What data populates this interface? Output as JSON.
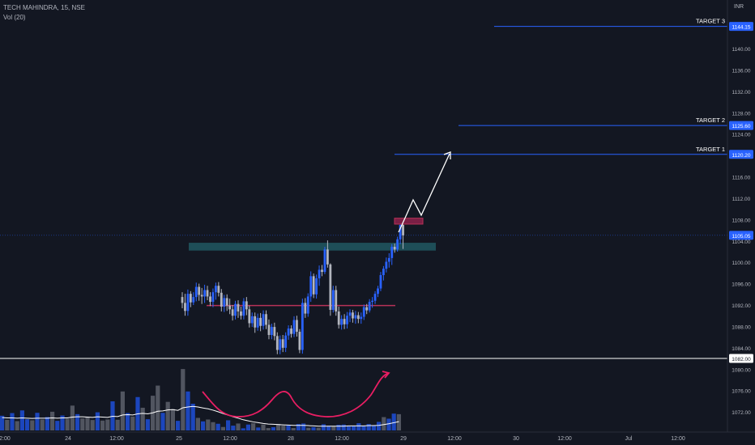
{
  "header": {
    "symbol_line": "TECH MAHINDRA, 15, NSE",
    "volume_label": "Vol (20)",
    "currency": "INR"
  },
  "colors": {
    "background": "#131722",
    "bull": "#2962ff",
    "bear": "#b2b5be",
    "resistance_zone": "#1e4e58",
    "line": "#b83258",
    "target_line": "#2962ff",
    "volume_ma": "#ffffff"
  },
  "chart_data": {
    "type": "candlestick",
    "title": "TECH MAHINDRA, 15, NSE",
    "ylim": [
      1070,
      1146
    ],
    "y_ticks": [
      1072,
      1076,
      1080,
      1084,
      1088,
      1092,
      1096,
      1100,
      1104,
      1108,
      1112,
      1116,
      1120,
      1124,
      1128,
      1132,
      1136,
      1140
    ],
    "x_ticks": [
      "12:00",
      "24",
      "12:00",
      "25",
      "12:00",
      "28",
      "12:00",
      "29",
      "12:00",
      "30",
      "12:00",
      "Jul",
      "12:00"
    ],
    "price_labels": [
      {
        "value": 1144.15,
        "text": "1144.15"
      },
      {
        "value": 1125.6,
        "text": "1125.60"
      },
      {
        "value": 1120.2,
        "text": "1120.20"
      },
      {
        "value": 1105.05,
        "text": "1105.05"
      },
      {
        "value": 1082.0,
        "text": "1082.00"
      }
    ],
    "targets": [
      {
        "label": "TARGET 3",
        "value": 1144.15
      },
      {
        "label": "TARGET 2",
        "value": 1125.6
      },
      {
        "label": "TARGET 1",
        "value": 1120.2
      }
    ],
    "support_line": 1082.0,
    "last_price": 1105.05,
    "neckline": 1091.9,
    "resistance_zone": [
      1102.5,
      1103.5
    ],
    "breakout_box": [
      1107.3,
      1108.1
    ],
    "candles": [
      [
        1093.5,
        1094.4,
        1091.4,
        1092.4
      ],
      [
        1092.4,
        1094.1,
        1090.0,
        1090.9
      ],
      [
        1090.9,
        1094.9,
        1090.0,
        1094.1
      ],
      [
        1094.1,
        1094.6,
        1091.6,
        1092.5
      ],
      [
        1092.5,
        1094.4,
        1092.0,
        1093.5
      ],
      [
        1093.5,
        1096.2,
        1092.7,
        1095.4
      ],
      [
        1095.4,
        1096.0,
        1092.8,
        1093.9
      ],
      [
        1093.9,
        1095.2,
        1092.2,
        1093.6
      ],
      [
        1093.6,
        1095.8,
        1092.4,
        1094.8
      ],
      [
        1094.8,
        1095.6,
        1092.9,
        1093.6
      ],
      [
        1093.6,
        1094.4,
        1091.8,
        1092.6
      ],
      [
        1092.6,
        1095.1,
        1091.6,
        1094.4
      ],
      [
        1094.4,
        1096.2,
        1093.0,
        1095.6
      ],
      [
        1095.6,
        1096.3,
        1093.6,
        1094.3
      ],
      [
        1094.3,
        1095.0,
        1090.8,
        1091.7
      ],
      [
        1091.7,
        1093.9,
        1090.7,
        1093.3
      ],
      [
        1093.3,
        1094.0,
        1090.9,
        1091.9
      ],
      [
        1091.9,
        1093.2,
        1090.3,
        1091.2
      ],
      [
        1091.2,
        1092.0,
        1089.1,
        1090.0
      ],
      [
        1090.0,
        1092.8,
        1089.3,
        1092.2
      ],
      [
        1092.2,
        1092.9,
        1089.6,
        1090.8
      ],
      [
        1090.8,
        1091.7,
        1089.3,
        1090.0
      ],
      [
        1090.0,
        1093.3,
        1089.3,
        1092.7
      ],
      [
        1092.7,
        1093.5,
        1090.1,
        1091.2
      ],
      [
        1091.2,
        1091.9,
        1087.8,
        1088.6
      ],
      [
        1088.6,
        1090.6,
        1087.9,
        1089.9
      ],
      [
        1089.9,
        1090.6,
        1086.8,
        1087.8
      ],
      [
        1087.8,
        1090.4,
        1087.2,
        1089.6
      ],
      [
        1089.6,
        1090.5,
        1087.1,
        1088.1
      ],
      [
        1088.1,
        1091.0,
        1087.4,
        1090.3
      ],
      [
        1090.3,
        1091.0,
        1087.5,
        1088.3
      ],
      [
        1088.3,
        1089.3,
        1085.6,
        1086.4
      ],
      [
        1086.4,
        1088.5,
        1085.6,
        1087.9
      ],
      [
        1087.9,
        1088.7,
        1085.4,
        1086.2
      ],
      [
        1086.2,
        1086.9,
        1082.8,
        1083.6
      ],
      [
        1083.6,
        1086.3,
        1082.8,
        1085.6
      ],
      [
        1085.6,
        1086.4,
        1083.2,
        1084.0
      ],
      [
        1084.0,
        1086.9,
        1083.2,
        1086.3
      ],
      [
        1086.3,
        1088.2,
        1085.5,
        1087.6
      ],
      [
        1087.6,
        1088.2,
        1085.9,
        1086.6
      ],
      [
        1086.6,
        1089.9,
        1086.0,
        1089.2
      ],
      [
        1089.2,
        1090.0,
        1086.1,
        1087.0
      ],
      [
        1087.0,
        1087.5,
        1083.0,
        1083.6
      ],
      [
        1083.6,
        1093.2,
        1082.9,
        1092.4
      ],
      [
        1092.4,
        1093.3,
        1089.6,
        1090.4
      ],
      [
        1090.4,
        1094.2,
        1089.8,
        1093.6
      ],
      [
        1093.6,
        1098.3,
        1092.6,
        1097.4
      ],
      [
        1097.4,
        1097.9,
        1093.3,
        1094.0
      ],
      [
        1094.0,
        1097.7,
        1093.2,
        1097.0
      ],
      [
        1097.0,
        1099.4,
        1095.6,
        1098.6
      ],
      [
        1098.6,
        1099.5,
        1097.4,
        1098.2
      ],
      [
        1098.2,
        1102.9,
        1097.8,
        1102.4
      ],
      [
        1102.4,
        1104.1,
        1099.0,
        1099.6
      ],
      [
        1099.6,
        1099.8,
        1090.0,
        1091.1
      ],
      [
        1091.1,
        1095.6,
        1090.6,
        1094.8
      ],
      [
        1094.8,
        1095.6,
        1090.0,
        1090.8
      ],
      [
        1090.8,
        1091.7,
        1087.6,
        1088.3
      ],
      [
        1088.3,
        1090.1,
        1087.4,
        1089.4
      ],
      [
        1089.4,
        1090.3,
        1087.5,
        1088.4
      ],
      [
        1088.4,
        1090.7,
        1087.6,
        1090.0
      ],
      [
        1090.0,
        1091.2,
        1088.8,
        1090.6
      ],
      [
        1090.6,
        1091.1,
        1088.7,
        1089.5
      ],
      [
        1089.5,
        1090.9,
        1088.5,
        1090.1
      ],
      [
        1090.1,
        1090.7,
        1088.6,
        1089.4
      ],
      [
        1089.4,
        1090.6,
        1088.5,
        1089.8
      ],
      [
        1089.8,
        1092.1,
        1089.2,
        1091.6
      ],
      [
        1091.6,
        1092.2,
        1090.3,
        1091.0
      ],
      [
        1091.0,
        1093.1,
        1090.6,
        1092.6
      ],
      [
        1092.6,
        1093.5,
        1091.5,
        1092.8
      ],
      [
        1092.8,
        1094.6,
        1092.2,
        1094.1
      ],
      [
        1094.1,
        1095.6,
        1093.5,
        1095.1
      ],
      [
        1095.1,
        1098.2,
        1094.6,
        1097.6
      ],
      [
        1097.6,
        1099.3,
        1096.6,
        1098.8
      ],
      [
        1098.8,
        1100.9,
        1098.1,
        1100.1
      ],
      [
        1100.1,
        1101.7,
        1099.0,
        1100.8
      ],
      [
        1100.8,
        1103.4,
        1099.5,
        1102.9
      ],
      [
        1102.9,
        1103.5,
        1101.8,
        1102.4
      ],
      [
        1102.4,
        1104.8,
        1102.0,
        1104.3
      ],
      [
        1104.3,
        1107.5,
        1103.4,
        1107.0
      ],
      [
        1107.0,
        1107.4,
        1102.5,
        1105.05
      ]
    ],
    "volumes": [
      5.5,
      4.0,
      6.5,
      3.5,
      7.5,
      4.2,
      3.8,
      6.6,
      4.1,
      5.0,
      7.0,
      3.6,
      5.6,
      4.4,
      9.3,
      6.1,
      4.5,
      5.0,
      3.9,
      6.8,
      3.7,
      4.1,
      10.9,
      4.0,
      14.6,
      6.5,
      5.2,
      12.5,
      8.5,
      4.2,
      13.0,
      16.8,
      6.6,
      10.7,
      8.0,
      3.6,
      23.0,
      14.6,
      10.0,
      4.7,
      3.4,
      4.1,
      3.1,
      2.5,
      1.3,
      3.8,
      1.8,
      2.6,
      0.8,
      2.2,
      2.7,
      1.1,
      2.2,
      0.9,
      1.2,
      2.4,
      1.8,
      1.9,
      0.9,
      2.4,
      2.6,
      1.0,
      1.2,
      1.0,
      2.3,
      1.7,
      1.5,
      2.1,
      2.2,
      1.5,
      1.6,
      2.7,
      1.6,
      2.4,
      1.9,
      3.2,
      5.0,
      4.4,
      6.3,
      6.1
    ],
    "volume_up": [
      true,
      false,
      true,
      false,
      true,
      true,
      false,
      true,
      false,
      true,
      false,
      true,
      true,
      false,
      false,
      true,
      false,
      false,
      false,
      true,
      false,
      false,
      true,
      false,
      false,
      true,
      false,
      true,
      false,
      true,
      false,
      false,
      true,
      false,
      false,
      true,
      false,
      true,
      true,
      false,
      true,
      false,
      false,
      true,
      false,
      true,
      true,
      false,
      true,
      true,
      false,
      true,
      false,
      false,
      true,
      false,
      false,
      true,
      false,
      true,
      true,
      false,
      true,
      false,
      true,
      true,
      false,
      true,
      true,
      true,
      true,
      true,
      true,
      true,
      true,
      true,
      false,
      true,
      true,
      false
    ],
    "volume_ma": [
      4.8,
      4.7,
      4.7,
      4.6,
      4.7,
      4.6,
      4.5,
      4.6,
      4.6,
      4.6,
      4.7,
      4.6,
      4.7,
      4.7,
      5.0,
      5.1,
      5.1,
      5.0,
      4.9,
      5.1,
      5.0,
      4.9,
      5.3,
      5.2,
      5.8,
      5.9,
      5.8,
      6.2,
      6.4,
      6.2,
      6.6,
      7.2,
      7.3,
      7.7,
      7.8,
      7.5,
      8.5,
      8.8,
      9.0,
      8.8,
      8.4,
      8.1,
      7.6,
      7.0,
      6.3,
      5.7,
      5.1,
      4.6,
      4.0,
      3.6,
      3.2,
      2.9,
      2.6,
      2.4,
      2.3,
      2.2,
      2.1,
      2.0,
      1.9,
      1.9,
      1.9,
      1.8,
      1.7,
      1.6,
      1.6,
      1.6,
      1.6,
      1.6,
      1.6,
      1.7,
      1.7,
      1.7,
      1.7,
      1.8,
      1.8,
      1.9,
      2.2,
      2.5,
      2.9,
      3.3
    ]
  }
}
